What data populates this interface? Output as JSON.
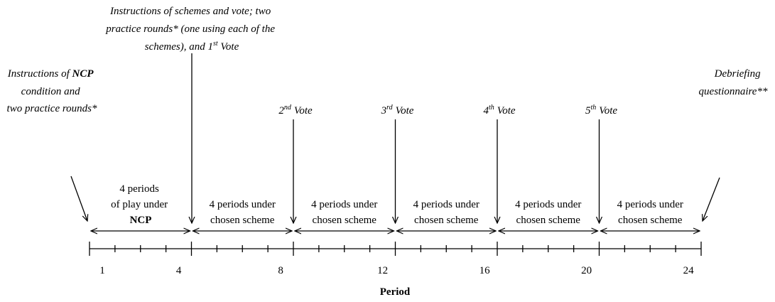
{
  "top_annotation": {
    "line1": "Instructions of schemes and vote; two",
    "line2": "practice rounds* (one using each of the",
    "line3": "schemes), and 1",
    "line3_sup": "st",
    "line3_end": " Vote"
  },
  "left_annotation": {
    "line1": "Instructions of ",
    "line1_bold": "NCP",
    "line2": "condition and",
    "line3": "two practice rounds*"
  },
  "right_annotation": {
    "line1": "Debriefing",
    "line2": "questionnaire**"
  },
  "votes": [
    {
      "number": "2",
      "suffix": "nd",
      "label": "Vote"
    },
    {
      "number": "3",
      "suffix": "rd",
      "label": "Vote"
    },
    {
      "number": "4",
      "suffix": "th",
      "label": "Vote"
    },
    {
      "number": "5",
      "suffix": "th",
      "label": "Vote"
    }
  ],
  "first_segment": {
    "line1": "4 periods",
    "line2": "of play under",
    "line3": "NCP"
  },
  "segments": [
    {
      "line1": "4 periods under",
      "line2": "chosen scheme"
    },
    {
      "line1": "4 periods under",
      "line2": "chosen scheme"
    },
    {
      "line1": "4 periods under",
      "line2": "chosen scheme"
    },
    {
      "line1": "4 periods under",
      "line2": "chosen scheme"
    },
    {
      "line1": "4 periods under",
      "line2": "chosen scheme"
    }
  ],
  "period_labels": [
    1,
    4,
    8,
    12,
    16,
    20,
    24
  ],
  "axis_label": "Period"
}
